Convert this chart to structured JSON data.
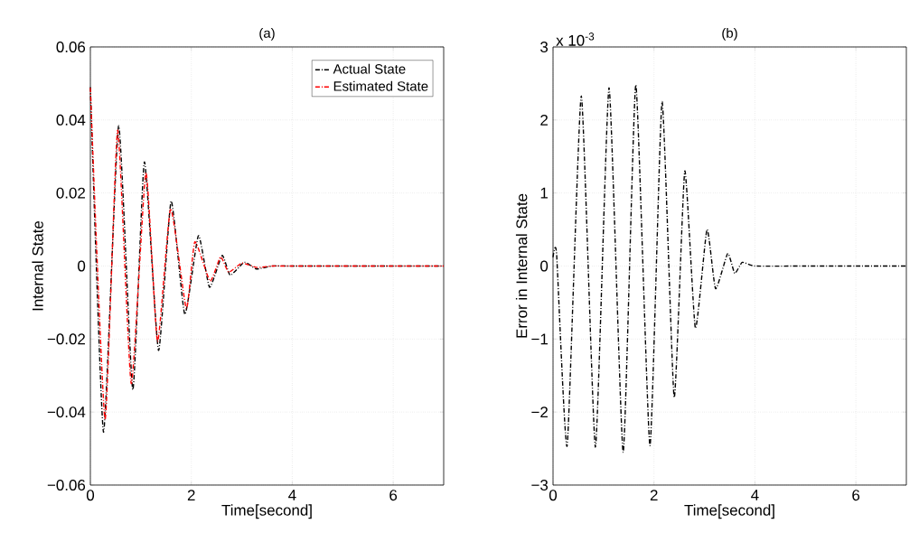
{
  "chart_data": [
    {
      "type": "line",
      "title": "(a)",
      "xlabel": "Time[second]",
      "ylabel": "Internal State",
      "xlim": [
        0,
        7
      ],
      "xticks": [
        0,
        2,
        4,
        6
      ],
      "ylim": [
        -0.06,
        0.06
      ],
      "yticks": [
        {
          "value": -0.06,
          "label": "−0.06"
        },
        {
          "value": -0.04,
          "label": "−0.04"
        },
        {
          "value": -0.02,
          "label": "−0.02"
        },
        0,
        0.02,
        0.04,
        0.06
      ],
      "grid": true,
      "legend": "top right",
      "line_style": "dashed",
      "series": [
        {
          "name": "Actual State",
          "color": "#000000",
          "x": [
            0,
            0.26,
            0.56,
            0.84,
            1.07,
            1.35,
            1.6,
            1.87,
            2.14,
            2.36,
            2.61,
            2.77,
            3.05,
            3.29,
            3.6,
            4,
            5,
            6,
            7
          ],
          "values": [
            0.049,
            -0.0455,
            0.0384,
            -0.0339,
            0.0285,
            -0.0231,
            0.0178,
            -0.0132,
            0.0083,
            -0.0058,
            0.0029,
            -0.0025,
            0.001,
            -0.0008,
            0,
            0,
            0,
            0,
            0
          ]
        },
        {
          "name": "Estimated State",
          "color": "#ff0000",
          "x": [
            0,
            0.29,
            0.54,
            0.81,
            1.1,
            1.33,
            1.59,
            1.9,
            2.07,
            2.37,
            2.58,
            2.74,
            3.0,
            3.3,
            3.6,
            4,
            5,
            6,
            7
          ],
          "values": [
            0.0488,
            -0.0421,
            0.0372,
            -0.0322,
            0.0256,
            -0.0207,
            0.0157,
            -0.0116,
            0.0066,
            -0.0041,
            0.0025,
            -0.0017,
            0.0008,
            -0.0004,
            0,
            0,
            0,
            0,
            0
          ]
        }
      ]
    },
    {
      "type": "line",
      "title": "(b)",
      "xlabel": "Time[second]",
      "ylabel": "Error in Internal State",
      "annotations": [
        "x 10$^{-3}$"
      ],
      "xlim": [
        0,
        7
      ],
      "xticks": [
        0,
        2,
        4,
        6
      ],
      "ylim": [
        -3,
        3
      ],
      "yticks": [
        {
          "value": -3,
          "label": "−3"
        },
        {
          "value": -2,
          "label": "−2"
        },
        {
          "value": -1,
          "label": "−1"
        },
        0,
        1,
        2,
        3
      ],
      "grid": true,
      "line_style": "dashed",
      "series": [
        {
          "color": "#000000",
          "x": [
            0,
            0.07,
            0.28,
            0.56,
            0.84,
            1.11,
            1.39,
            1.64,
            1.92,
            2.16,
            2.4,
            2.61,
            2.82,
            3.05,
            3.22,
            3.46,
            3.6,
            3.75,
            4,
            5,
            6,
            7
          ],
          "values": [
            0.12,
            0.17,
            -2.46,
            2.33,
            -2.48,
            2.44,
            -2.55,
            2.48,
            -2.46,
            2.25,
            -1.8,
            1.3,
            -0.85,
            0.5,
            -0.31,
            0.17,
            -0.1,
            0.05,
            0,
            0,
            0,
            0
          ]
        }
      ]
    }
  ]
}
